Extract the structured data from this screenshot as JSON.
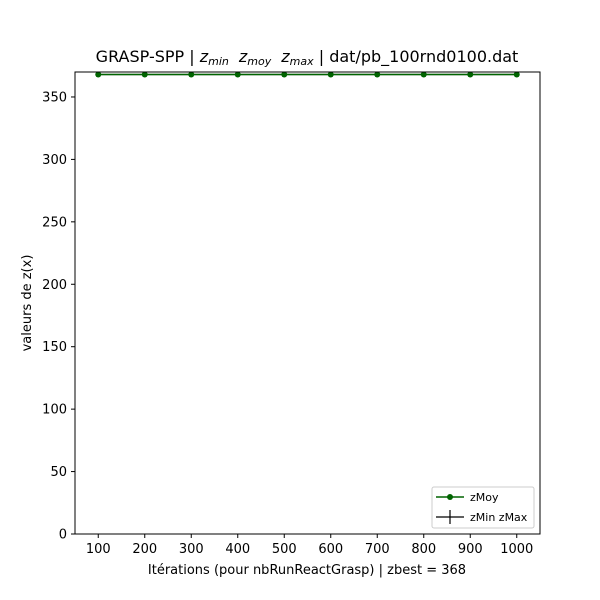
{
  "chart_data": {
    "type": "line",
    "title": {
      "prefix": "GRASP-SPP | ",
      "zmin_base": "z",
      "zmin_sub": "min",
      "zmoy_base": "z",
      "zmoy_sub": "moy",
      "zmax_base": "z",
      "zmax_sub": "max",
      "suffix": " | dat/pb_100rnd0100.dat"
    },
    "xlabel": "Itérations (pour nbRunReactGrasp) | zbest = 368",
    "ylabel": "valeurs de z(x)",
    "x": [
      100,
      200,
      300,
      400,
      500,
      600,
      700,
      800,
      900,
      1000
    ],
    "xlim": [
      50,
      1050
    ],
    "ylim": [
      0,
      370
    ],
    "xticks": [
      "100",
      "200",
      "300",
      "400",
      "500",
      "600",
      "700",
      "800",
      "900",
      "1000"
    ],
    "yticks": [
      "0",
      "50",
      "100",
      "150",
      "200",
      "250",
      "300",
      "350"
    ],
    "series": [
      {
        "name": "zMoy",
        "color": "#006400",
        "marker": "circle",
        "values": [
          368,
          368,
          368,
          368,
          368,
          368,
          368,
          368,
          368,
          368
        ]
      },
      {
        "name": "zMin zMax",
        "color": "#000000",
        "marker": "errorbar",
        "min": [
          368,
          368,
          368,
          368,
          368,
          368,
          368,
          368,
          368,
          368
        ],
        "max": [
          368,
          368,
          368,
          368,
          368,
          368,
          368,
          368,
          368,
          368
        ]
      }
    ],
    "legend_position": "lower-right",
    "grid": false
  }
}
